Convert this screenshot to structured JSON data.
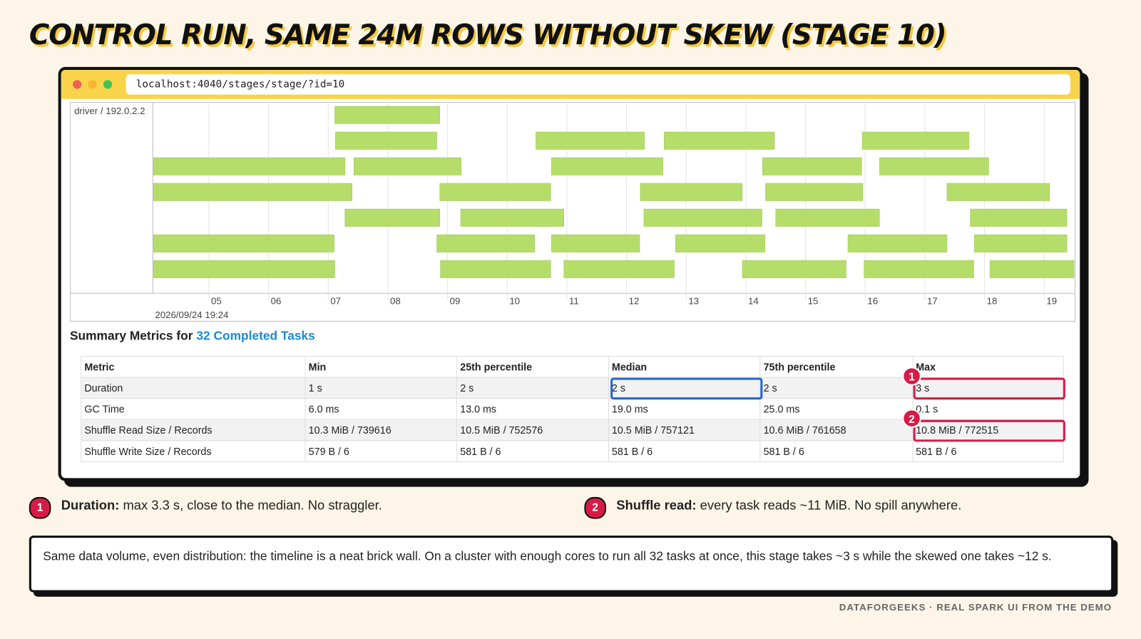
{
  "title": "CONTROL RUN, SAME 24M ROWS WITHOUT SKEW (STAGE 10)",
  "browser": {
    "url": "localhost:4040/stages/stage/?id=10"
  },
  "timeline": {
    "host": "driver / 192.0.2.2",
    "date": "2026/09/24 19:24",
    "xlim": [
      4.06,
      19.5
    ],
    "xticks": [
      {
        "value": 5,
        "label": "05"
      },
      {
        "value": 6,
        "label": "06"
      },
      {
        "value": 7,
        "label": "07"
      },
      {
        "value": 8,
        "label": "08"
      },
      {
        "value": 9,
        "label": "09"
      },
      {
        "value": 10,
        "label": "10"
      },
      {
        "value": 11,
        "label": "11"
      },
      {
        "value": 12,
        "label": "12"
      },
      {
        "value": 13,
        "label": "13"
      },
      {
        "value": 14,
        "label": "14"
      },
      {
        "value": 15,
        "label": "15"
      },
      {
        "value": 16,
        "label": "16"
      },
      {
        "value": 17,
        "label": "17"
      },
      {
        "value": 18,
        "label": "18"
      },
      {
        "value": 19,
        "label": "19"
      }
    ],
    "color": "#b5dd6a",
    "lanes": [
      [
        [
          7.11,
          8.87
        ]
      ],
      [
        [
          7.12,
          8.82
        ],
        [
          10.48,
          12.3
        ],
        [
          12.63,
          14.48
        ],
        [
          15.95,
          17.74
        ]
      ],
      [
        [
          4.07,
          7.28
        ],
        [
          7.43,
          9.23
        ],
        [
          10.74,
          12.61
        ],
        [
          14.28,
          15.94
        ],
        [
          16.24,
          18.07
        ]
      ],
      [
        [
          4.07,
          7.4
        ],
        [
          8.87,
          10.73
        ],
        [
          12.23,
          13.94
        ],
        [
          14.33,
          15.96
        ],
        [
          17.37,
          19.09
        ]
      ],
      [
        [
          7.28,
          8.87
        ],
        [
          9.22,
          10.95
        ],
        [
          12.29,
          14.27
        ],
        [
          14.5,
          16.24
        ],
        [
          17.76,
          19.38
        ]
      ],
      [
        [
          4.07,
          7.1
        ],
        [
          8.82,
          10.46
        ],
        [
          10.74,
          12.22
        ],
        [
          12.82,
          14.32
        ],
        [
          15.71,
          17.37
        ],
        [
          17.83,
          19.38
        ]
      ],
      [
        [
          4.07,
          7.11
        ],
        [
          8.88,
          10.73
        ],
        [
          10.95,
          12.8
        ],
        [
          13.94,
          15.68
        ],
        [
          15.98,
          17.82
        ],
        [
          18.09,
          19.5
        ]
      ]
    ]
  },
  "summary": {
    "heading": "Summary Metrics for ",
    "link": "32 Completed Tasks",
    "table": {
      "header": [
        "Metric",
        "Min",
        "25th percentile",
        "Median",
        "75th percentile",
        "Max"
      ],
      "rows": [
        [
          "Duration",
          "1 s",
          "2 s",
          "2 s",
          "2 s",
          "3 s"
        ],
        [
          "GC Time",
          "6.0 ms",
          "13.0 ms",
          "19.0 ms",
          "25.0 ms",
          "0.1 s"
        ],
        [
          "Shuffle Read Size / Records",
          "10.3 MiB / 739616",
          "10.5 MiB / 752576",
          "10.5 MiB / 757121",
          "10.6 MiB / 761658",
          "10.8 MiB / 772515"
        ],
        [
          "Shuffle Write Size / Records",
          "579 B / 6",
          "581 B / 6",
          "581 B / 6",
          "581 B / 6",
          "581 B / 6"
        ]
      ]
    }
  },
  "callouts": [
    {
      "badge": "1",
      "bold": "Duration:",
      "text": " max 3.3 s, close to the median. No straggler."
    },
    {
      "badge": "2",
      "bold": "Shuffle read:",
      "text": " every task reads ~11 MiB. No spill anywhere."
    }
  ],
  "note": "Same data volume, even distribution: the timeline is a neat brick wall. On a cluster with enough cores to run all 32 tasks at once, this stage takes ~3 s while the skewed one takes ~12 s.",
  "footer": "DATAFORGEEKS · REAL SPARK UI FROM THE DEMO"
}
